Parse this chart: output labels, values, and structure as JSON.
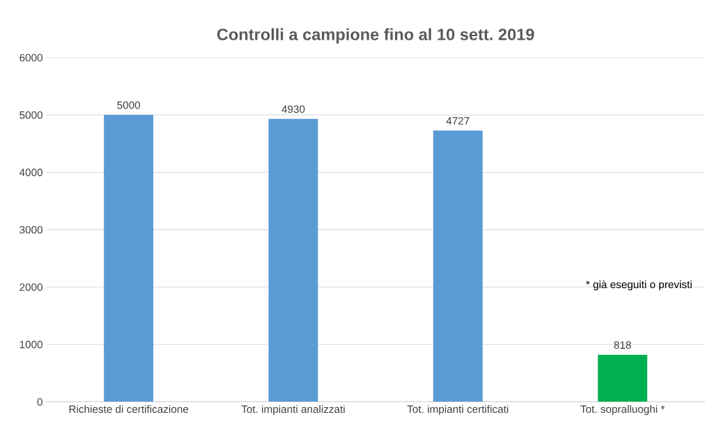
{
  "chart_data": {
    "type": "bar",
    "title": "Controlli a campione fino al 10 sett. 2019",
    "categories": [
      "Richieste di certificazione",
      "Tot. impianti analizzati",
      "Tot. impianti certificati",
      "Tot. sopralluoghi *"
    ],
    "values": [
      5000,
      4930,
      4727,
      818
    ],
    "colors": [
      "#5b9bd5",
      "#5b9bd5",
      "#5b9bd5",
      "#00b050"
    ],
    "ylim": [
      0,
      6000
    ],
    "yticks": [
      0,
      1000,
      2000,
      3000,
      4000,
      5000,
      6000
    ],
    "grid": "y",
    "data_labels": true,
    "legend": false,
    "annotations": [
      "* già eseguiti o previsti"
    ]
  }
}
